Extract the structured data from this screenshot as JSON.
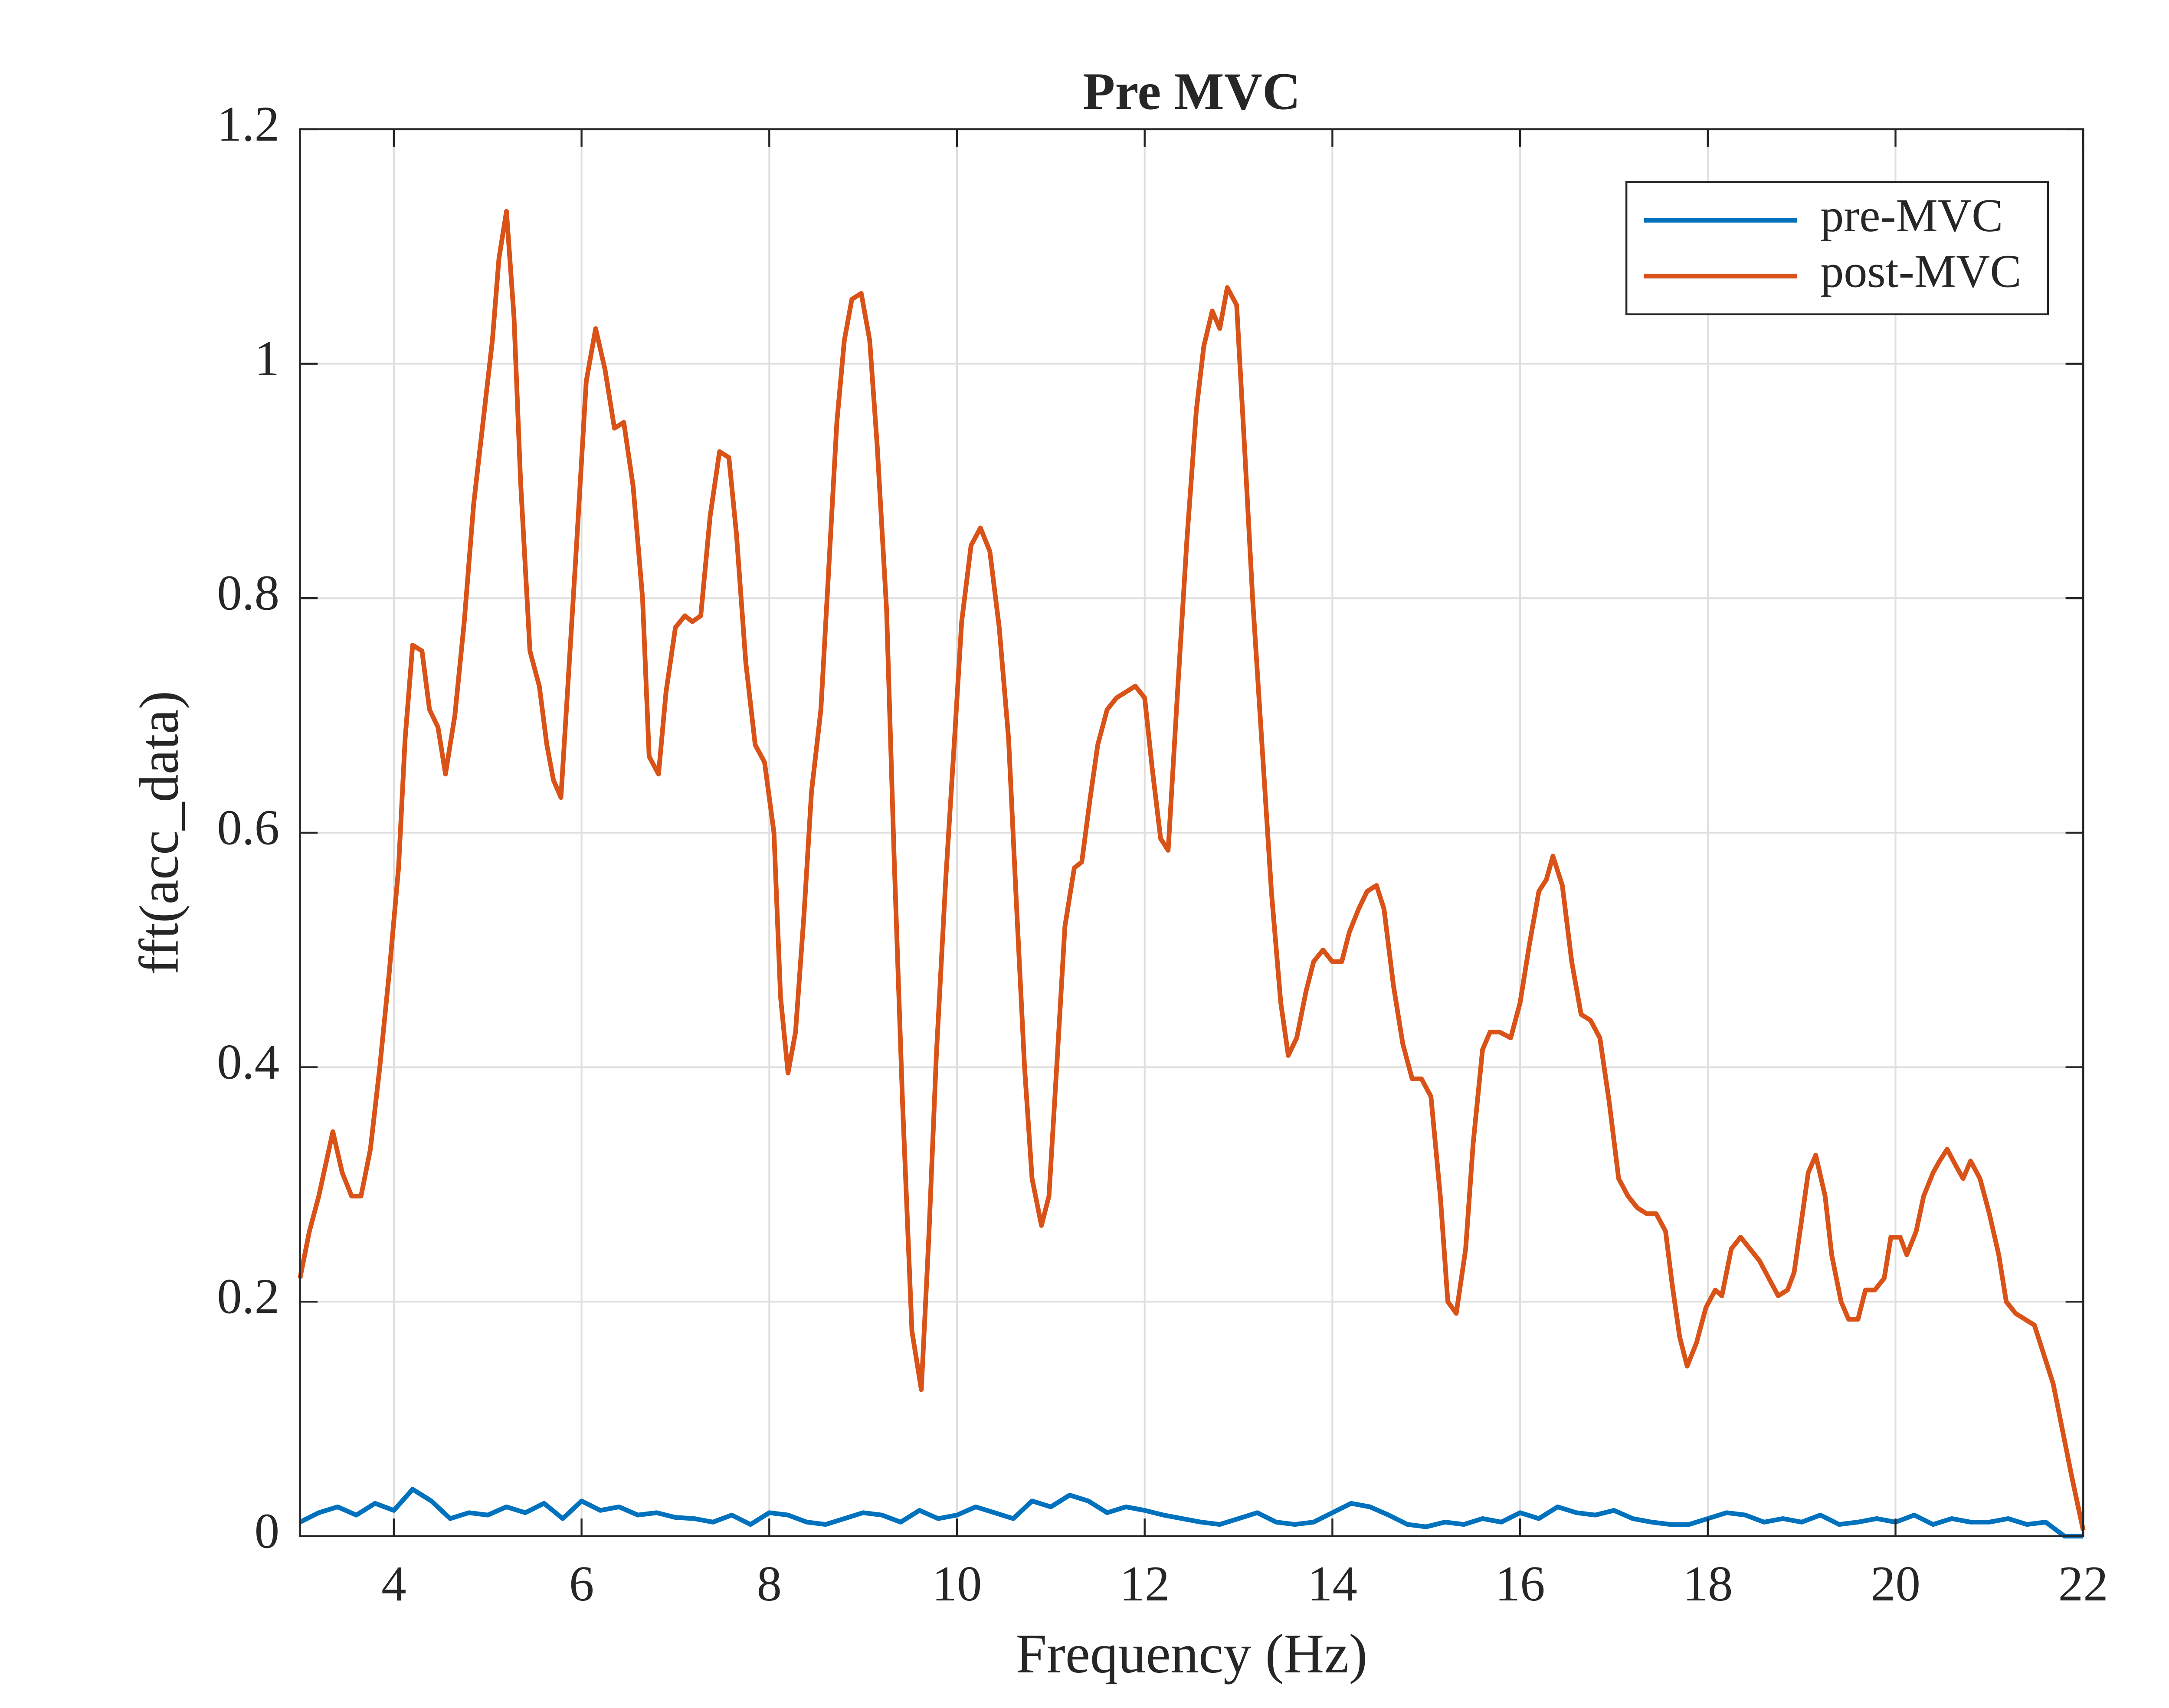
{
  "chart_data": {
    "type": "line",
    "title": "Pre MVC",
    "x_label": "Frequency (Hz)",
    "y_label": "fft(acc_data)",
    "xlim": [
      3,
      22
    ],
    "ylim": [
      0,
      1.2
    ],
    "xticks": [
      4,
      6,
      8,
      10,
      12,
      14,
      16,
      18,
      20,
      22
    ],
    "yticks": [
      0,
      0.2,
      0.4,
      0.6,
      0.8,
      1,
      1.2
    ],
    "grid": true,
    "legend": "northeast",
    "series": [
      {
        "name": "pre-MVC",
        "color": "#0072BD",
        "x": [
          3,
          3.2,
          3.4,
          3.6,
          3.8,
          4,
          4.2,
          4.4,
          4.6,
          4.8,
          5,
          5.2,
          5.4,
          5.6,
          5.8,
          6,
          6.2,
          6.4,
          6.6,
          6.8,
          7,
          7.2,
          7.4,
          7.6,
          7.8,
          8,
          8.2,
          8.4,
          8.6,
          8.8,
          9,
          9.2,
          9.4,
          9.6,
          9.8,
          10,
          10.2,
          10.4,
          10.6,
          10.8,
          11,
          11.2,
          11.4,
          11.6,
          11.8,
          12,
          12.2,
          12.4,
          12.6,
          12.8,
          13,
          13.2,
          13.4,
          13.6,
          13.8,
          14,
          14.2,
          14.4,
          14.6,
          14.8,
          15,
          15.2,
          15.4,
          15.6,
          15.8,
          16,
          16.2,
          16.4,
          16.6,
          16.8,
          17,
          17.2,
          17.4,
          17.6,
          17.8,
          18,
          18.2,
          18.4,
          18.6,
          18.8,
          19,
          19.2,
          19.4,
          19.6,
          19.8,
          20,
          20.2,
          20.4,
          20.6,
          20.8,
          21,
          21.2,
          21.4,
          21.6,
          21.8,
          22
        ],
        "values": [
          0.012,
          0.02,
          0.025,
          0.018,
          0.028,
          0.022,
          0.04,
          0.03,
          0.015,
          0.02,
          0.018,
          0.025,
          0.02,
          0.028,
          0.015,
          0.03,
          0.022,
          0.025,
          0.018,
          0.02,
          0.016,
          0.015,
          0.012,
          0.018,
          0.01,
          0.02,
          0.018,
          0.012,
          0.01,
          0.015,
          0.02,
          0.018,
          0.012,
          0.022,
          0.015,
          0.018,
          0.025,
          0.02,
          0.015,
          0.03,
          0.025,
          0.035,
          0.03,
          0.02,
          0.025,
          0.022,
          0.018,
          0.015,
          0.012,
          0.01,
          0.015,
          0.02,
          0.012,
          0.01,
          0.012,
          0.02,
          0.028,
          0.025,
          0.018,
          0.01,
          0.008,
          0.012,
          0.01,
          0.015,
          0.012,
          0.02,
          0.015,
          0.025,
          0.02,
          0.018,
          0.022,
          0.015,
          0.012,
          0.01,
          0.01,
          0.015,
          0.02,
          0.018,
          0.012,
          0.015,
          0.012,
          0.018,
          0.01,
          0.012,
          0.015,
          0.012,
          0.018,
          0.01,
          0.015,
          0.012,
          0.012,
          0.015,
          0.01,
          0.012,
          0,
          0
        ]
      },
      {
        "name": "post-MVC",
        "color": "#D95319",
        "x": [
          3,
          3.1,
          3.2,
          3.35,
          3.45,
          3.55,
          3.65,
          3.75,
          3.85,
          3.95,
          4.05,
          4.12,
          4.2,
          4.3,
          4.38,
          4.47,
          4.55,
          4.65,
          4.75,
          4.85,
          4.95,
          5.05,
          5.12,
          5.2,
          5.28,
          5.35,
          5.45,
          5.55,
          5.63,
          5.7,
          5.78,
          5.85,
          5.95,
          6.05,
          6.15,
          6.25,
          6.35,
          6.45,
          6.55,
          6.65,
          6.72,
          6.82,
          6.9,
          7,
          7.1,
          7.18,
          7.27,
          7.37,
          7.47,
          7.57,
          7.65,
          7.75,
          7.85,
          7.95,
          8.05,
          8.12,
          8.2,
          8.28,
          8.37,
          8.45,
          8.55,
          8.63,
          8.72,
          8.8,
          8.88,
          8.98,
          9.07,
          9.15,
          9.25,
          9.33,
          9.42,
          9.52,
          9.62,
          9.7,
          9.78,
          9.88,
          9.97,
          10.05,
          10.15,
          10.25,
          10.35,
          10.45,
          10.55,
          10.63,
          10.72,
          10.8,
          10.9,
          10.98,
          11.07,
          11.15,
          11.25,
          11.33,
          11.42,
          11.5,
          11.6,
          11.7,
          11.8,
          11.9,
          12,
          12.08,
          12.17,
          12.25,
          12.35,
          12.45,
          12.55,
          12.63,
          12.72,
          12.8,
          12.88,
          12.98,
          13.07,
          13.15,
          13.25,
          13.35,
          13.45,
          13.53,
          13.62,
          13.72,
          13.8,
          13.9,
          14,
          14.1,
          14.18,
          14.28,
          14.37,
          14.47,
          14.55,
          14.65,
          14.75,
          14.85,
          14.95,
          15.05,
          15.15,
          15.23,
          15.32,
          15.42,
          15.5,
          15.6,
          15.68,
          15.78,
          15.9,
          16,
          16.1,
          16.2,
          16.28,
          16.35,
          16.45,
          16.55,
          16.65,
          16.75,
          16.85,
          16.95,
          17.05,
          17.15,
          17.25,
          17.35,
          17.45,
          17.55,
          17.62,
          17.7,
          17.78,
          17.88,
          17.98,
          18.08,
          18.15,
          18.25,
          18.35,
          18.45,
          18.55,
          18.65,
          18.75,
          18.85,
          18.92,
          19,
          19.07,
          19.15,
          19.25,
          19.32,
          19.42,
          19.5,
          19.6,
          19.68,
          19.78,
          19.88,
          19.95,
          20.05,
          20.12,
          20.22,
          20.3,
          20.4,
          20.47,
          20.55,
          20.65,
          20.72,
          20.8,
          20.9,
          21,
          21.1,
          21.18,
          21.28,
          21.38,
          21.48,
          21.58,
          21.68,
          21.78,
          21.88,
          22
        ],
        "values": [
          0.22,
          0.26,
          0.29,
          0.345,
          0.31,
          0.29,
          0.29,
          0.33,
          0.4,
          0.48,
          0.57,
          0.68,
          0.76,
          0.755,
          0.705,
          0.69,
          0.65,
          0.7,
          0.78,
          0.88,
          0.95,
          1.02,
          1.09,
          1.13,
          1.04,
          0.9,
          0.755,
          0.725,
          0.675,
          0.645,
          0.63,
          0.72,
          0.85,
          0.985,
          1.03,
          0.995,
          0.945,
          0.95,
          0.895,
          0.8,
          0.665,
          0.65,
          0.72,
          0.775,
          0.785,
          0.78,
          0.785,
          0.87,
          0.925,
          0.92,
          0.855,
          0.745,
          0.675,
          0.66,
          0.6,
          0.46,
          0.395,
          0.43,
          0.53,
          0.635,
          0.705,
          0.82,
          0.95,
          1.02,
          1.055,
          1.06,
          1.02,
          0.93,
          0.79,
          0.58,
          0.37,
          0.175,
          0.125,
          0.255,
          0.41,
          0.56,
          0.675,
          0.78,
          0.845,
          0.86,
          0.84,
          0.775,
          0.68,
          0.545,
          0.4,
          0.305,
          0.265,
          0.29,
          0.41,
          0.52,
          0.57,
          0.575,
          0.63,
          0.675,
          0.705,
          0.715,
          0.72,
          0.725,
          0.715,
          0.655,
          0.595,
          0.585,
          0.72,
          0.85,
          0.96,
          1.015,
          1.045,
          1.03,
          1.065,
          1.05,
          0.92,
          0.8,
          0.675,
          0.55,
          0.455,
          0.41,
          0.425,
          0.465,
          0.49,
          0.5,
          0.49,
          0.49,
          0.515,
          0.535,
          0.55,
          0.555,
          0.535,
          0.47,
          0.42,
          0.39,
          0.39,
          0.375,
          0.29,
          0.2,
          0.19,
          0.245,
          0.335,
          0.415,
          0.43,
          0.43,
          0.425,
          0.455,
          0.505,
          0.55,
          0.56,
          0.58,
          0.555,
          0.49,
          0.445,
          0.44,
          0.425,
          0.37,
          0.305,
          0.29,
          0.28,
          0.275,
          0.275,
          0.26,
          0.215,
          0.17,
          0.145,
          0.165,
          0.195,
          0.21,
          0.205,
          0.245,
          0.255,
          0.245,
          0.235,
          0.22,
          0.205,
          0.21,
          0.225,
          0.27,
          0.31,
          0.325,
          0.29,
          0.24,
          0.2,
          0.185,
          0.185,
          0.21,
          0.21,
          0.22,
          0.255,
          0.255,
          0.24,
          0.26,
          0.29,
          0.31,
          0.32,
          0.33,
          0.315,
          0.305,
          0.32,
          0.305,
          0.275,
          0.24,
          0.2,
          0.19,
          0.185,
          0.18,
          0.155,
          0.13,
          0.09,
          0.05,
          0.005
        ]
      }
    ]
  }
}
